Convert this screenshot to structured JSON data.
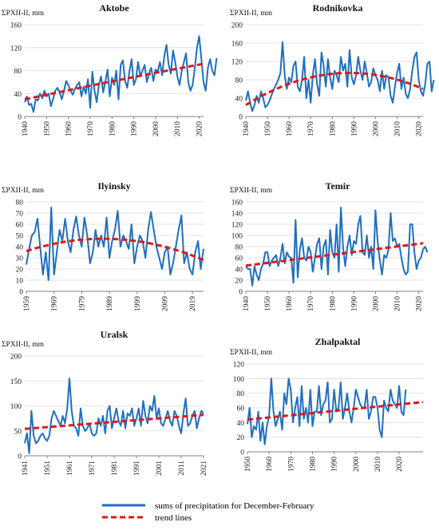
{
  "colors": {
    "series": "#1f6fc0",
    "trend": "#e01818",
    "grid": "#d9d9d9",
    "axis": "#7f7f7f"
  },
  "legend": {
    "series_label": "sums of precipitation for December-February",
    "trend_label": "trend lines"
  },
  "chart_data": [
    {
      "type": "line",
      "title": "Aktobe",
      "ylabel": "ΣPXII-II, mm",
      "ylim": [
        0,
        160
      ],
      "yticks": [
        0,
        40,
        80,
        120,
        160
      ],
      "xlim": [
        1940,
        2022
      ],
      "xticks": [
        1940,
        1950,
        1960,
        1970,
        1980,
        1990,
        2000,
        2010,
        2020
      ],
      "series": [
        {
          "x_start": 1940,
          "x_step": 1,
          "values": [
            25,
            35,
            20,
            22,
            8,
            30,
            28,
            40,
            32,
            45,
            35,
            40,
            18,
            30,
            45,
            50,
            42,
            30,
            45,
            62,
            55,
            45,
            38,
            48,
            55,
            60,
            35,
            52,
            40,
            65,
            15,
            78,
            45,
            25,
            55,
            70,
            42,
            62,
            82,
            35,
            68,
            55,
            80,
            30,
            90,
            98,
            62,
            50,
            78,
            100,
            55,
            65,
            95,
            70,
            80,
            90,
            60,
            75,
            85,
            62,
            82,
            78,
            95,
            72,
            105,
            125,
            90,
            75,
            115,
            95,
            70,
            55,
            80,
            95,
            110,
            60,
            45,
            55,
            85,
            120,
            140,
            100,
            60,
            45,
            85,
            100,
            80,
            72,
            102
          ]
        }
      ],
      "trend": {
        "type": "quadratic",
        "points": [
          [
            1940,
            30
          ],
          [
            1981,
            62
          ],
          [
            2022,
            92
          ]
        ]
      }
    },
    {
      "type": "line",
      "title": "Rodnikovka",
      "ylabel": "ΣPXII-II, mm",
      "ylim": [
        0,
        200
      ],
      "yticks": [
        0,
        40,
        80,
        120,
        160,
        200
      ],
      "xlim": [
        1940,
        2022
      ],
      "xticks": [
        1940,
        1950,
        1960,
        1970,
        1980,
        1990,
        2000,
        2010,
        2020
      ],
      "series": [
        {
          "x_start": 1940,
          "x_step": 1,
          "values": [
            35,
            55,
            30,
            12,
            25,
            45,
            30,
            55,
            40,
            20,
            25,
            35,
            48,
            60,
            70,
            80,
            95,
            162,
            90,
            60,
            85,
            75,
            110,
            120,
            65,
            55,
            80,
            130,
            40,
            80,
            30,
            90,
            125,
            70,
            45,
            140,
            110,
            65,
            125,
            85,
            60,
            100,
            90,
            75,
            130,
            100,
            115,
            65,
            145,
            85,
            70,
            90,
            130,
            100,
            80,
            120,
            95,
            65,
            75,
            105,
            90,
            80,
            55,
            100,
            60,
            90,
            85,
            45,
            30,
            65,
            95,
            115,
            60,
            85,
            50,
            40,
            60,
            100,
            130,
            140,
            80,
            55,
            45,
            70,
            115,
            120,
            55,
            80
          ]
        }
      ],
      "trend": {
        "type": "quadratic",
        "points": [
          [
            1940,
            25
          ],
          [
            1987,
            95
          ],
          [
            2022,
            60
          ]
        ]
      }
    },
    {
      "type": "line",
      "title": "Ilyinsky",
      "ylabel": "ΣPXII-II, mm",
      "ylim": [
        0,
        80
      ],
      "yticks": [
        0,
        10,
        20,
        30,
        40,
        50,
        60,
        70,
        80
      ],
      "xlim": [
        1959,
        2023
      ],
      "xticks": [
        1959,
        1969,
        1979,
        1989,
        1999,
        2009,
        2019
      ],
      "series": [
        {
          "x_start": 1959,
          "x_step": 1,
          "values": [
            24,
            38,
            50,
            53,
            65,
            40,
            15,
            35,
            10,
            75,
            15,
            35,
            55,
            45,
            65,
            45,
            35,
            55,
            67,
            50,
            40,
            66,
            50,
            25,
            35,
            55,
            40,
            50,
            40,
            66,
            30,
            45,
            55,
            72,
            40,
            50,
            45,
            38,
            60,
            25,
            40,
            50,
            45,
            30,
            55,
            71,
            55,
            40,
            30,
            20,
            35,
            40,
            15,
            25,
            40,
            55,
            68,
            25,
            35,
            20,
            15,
            35,
            45,
            20,
            38
          ]
        }
      ],
      "trend": {
        "type": "quadratic",
        "points": [
          [
            1959,
            36
          ],
          [
            1989,
            47
          ],
          [
            2023,
            28
          ]
        ]
      }
    },
    {
      "type": "line",
      "title": "Temir",
      "ylabel": "ΣPXII-II, mm",
      "ylim": [
        0,
        160
      ],
      "yticks": [
        0,
        20,
        40,
        60,
        80,
        100,
        120,
        140,
        160
      ],
      "xlim": [
        1940,
        2022
      ],
      "xticks": [
        1940,
        1950,
        1960,
        1970,
        1980,
        1990,
        2000,
        2010,
        2020
      ],
      "series": [
        {
          "x_start": 1940,
          "x_step": 1,
          "values": [
            45,
            40,
            40,
            10,
            45,
            30,
            20,
            40,
            50,
            70,
            70,
            45,
            55,
            60,
            65,
            45,
            60,
            85,
            50,
            70,
            62,
            60,
            15,
            128,
            25,
            75,
            95,
            60,
            55,
            80,
            70,
            35,
            60,
            85,
            95,
            40,
            80,
            92,
            30,
            110,
            70,
            60,
            120,
            35,
            150,
            80,
            45,
            80,
            100,
            65,
            90,
            85,
            120,
            135,
            70,
            65,
            100,
            60,
            80,
            40,
            145,
            90,
            55,
            30,
            65,
            60,
            75,
            140,
            90,
            95,
            80,
            85,
            60,
            40,
            30,
            35,
            120,
            120,
            70,
            40,
            55,
            60,
            75,
            80,
            70
          ]
        }
      ],
      "trend": {
        "type": "linear",
        "points": [
          [
            1940,
            46
          ],
          [
            2022,
            86
          ]
        ]
      }
    },
    {
      "type": "line",
      "title": "Uralsk",
      "ylabel": "ΣPXII-II, mm",
      "ylim": [
        0,
        200
      ],
      "yticks": [
        0,
        50,
        100,
        150,
        200
      ],
      "xlim": [
        1941,
        2021
      ],
      "xticks": [
        1941,
        1951,
        1961,
        1971,
        1981,
        1991,
        2001,
        2011,
        2021
      ],
      "series": [
        {
          "x_start": 1941,
          "x_step": 1,
          "values": [
            25,
            45,
            5,
            90,
            40,
            25,
            30,
            40,
            45,
            35,
            30,
            40,
            75,
            90,
            80,
            70,
            60,
            80,
            65,
            95,
            155,
            90,
            60,
            55,
            40,
            95,
            60,
            50,
            55,
            65,
            45,
            40,
            45,
            75,
            60,
            80,
            45,
            90,
            100,
            55,
            75,
            95,
            70,
            60,
            90,
            55,
            85,
            80,
            95,
            60,
            75,
            95,
            60,
            110,
            80,
            65,
            100,
            90,
            120,
            75,
            95,
            65,
            60,
            75,
            90,
            70,
            60,
            90,
            80,
            60,
            45,
            85,
            115,
            60,
            65,
            80,
            90,
            55,
            75,
            90,
            85
          ]
        }
      ],
      "trend": {
        "type": "linear",
        "points": [
          [
            1941,
            54
          ],
          [
            2021,
            82
          ]
        ]
      }
    },
    {
      "type": "line",
      "title": "Zhalpaktal",
      "ylabel": "ΣPXII-II, mm",
      "ylim": [
        0,
        120
      ],
      "yticks": [
        0,
        20,
        40,
        60,
        80,
        100,
        120
      ],
      "xlim": [
        1950,
        2031
      ],
      "xticks": [
        1950,
        1960,
        1970,
        1980,
        1990,
        2000,
        2010,
        2020
      ],
      "series": [
        {
          "x_start": 1950,
          "x_step": 1,
          "values": [
            38,
            60,
            20,
            35,
            30,
            55,
            15,
            40,
            10,
            35,
            50,
            100,
            55,
            35,
            45,
            55,
            30,
            80,
            65,
            100,
            85,
            40,
            60,
            75,
            35,
            90,
            45,
            60,
            40,
            85,
            35,
            55,
            55,
            90,
            50,
            65,
            70,
            95,
            40,
            45,
            85,
            55,
            60,
            95,
            45,
            60,
            80,
            55,
            40,
            60,
            85,
            75,
            65,
            60,
            60,
            85,
            45,
            55,
            75,
            75,
            60,
            30,
            20,
            70,
            60,
            55,
            85,
            70,
            65,
            60,
            90,
            55,
            50,
            85
          ]
        }
      ],
      "trend": {
        "type": "linear",
        "points": [
          [
            1950,
            44
          ],
          [
            2031,
            68
          ]
        ]
      }
    }
  ]
}
